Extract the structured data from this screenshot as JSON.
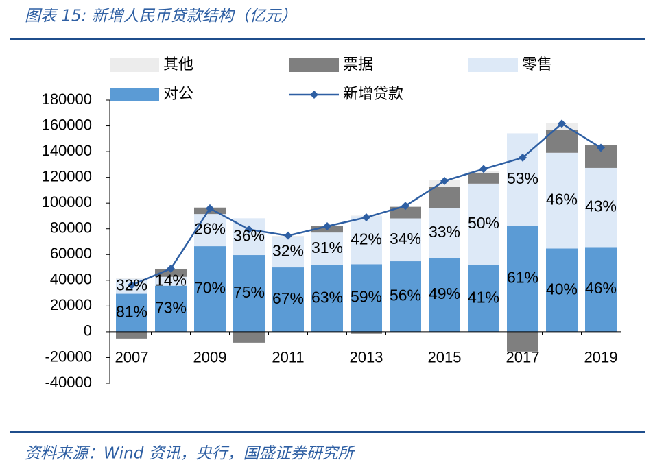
{
  "chart_data": {
    "type": "stacked-bar-line",
    "title": "图表 15:  新增人民币贷款结构（亿元）",
    "source": "资料来源：Wind 资讯，央行，国盛证券研究所",
    "categories": [
      "2007",
      null,
      "2009",
      null,
      "2011",
      null,
      "2013",
      null,
      "2015",
      null,
      "2017",
      null,
      "2019"
    ],
    "series": [
      {
        "name": "其他",
        "type": "bar",
        "color": "#ececec",
        "values": [
          500,
          300,
          0,
          0,
          500,
          0,
          500,
          0,
          5000,
          2000,
          0,
          5000,
          0
        ]
      },
      {
        "name": "票据",
        "type": "bar",
        "color": "#7f7f7f",
        "values": [
          -5300,
          6000,
          5000,
          -8500,
          0,
          5000,
          -1500,
          9000,
          16700,
          8000,
          -15400,
          18000,
          18000
        ]
      },
      {
        "name": "零售",
        "type": "bar",
        "color": "#dde9f7",
        "values": [
          11600,
          6900,
          25000,
          28600,
          24000,
          25400,
          37300,
          33300,
          38700,
          63200,
          71700,
          74400,
          61500
        ],
        "share_labels": [
          "32%",
          "14%",
          "26%",
          "36%",
          "32%",
          "31%",
          "42%",
          "34%",
          "33%",
          "50%",
          "53%",
          "46%",
          "43%"
        ]
      },
      {
        "name": "对公",
        "type": "bar",
        "color": "#5b9bd5",
        "values": [
          29500,
          35800,
          66500,
          59600,
          50000,
          51700,
          52500,
          54800,
          57400,
          51900,
          82500,
          64700,
          65800
        ],
        "share_labels": [
          "81%",
          "73%",
          "70%",
          "75%",
          "67%",
          "63%",
          "59%",
          "56%",
          "49%",
          "41%",
          "61%",
          "40%",
          "46%"
        ]
      },
      {
        "name": "新增贷款",
        "type": "line",
        "color": "#2e5fa3",
        "values": [
          36300,
          49000,
          95900,
          79500,
          74700,
          82000,
          88900,
          97800,
          117200,
          126500,
          135300,
          161700,
          143000
        ]
      }
    ],
    "ylim": [
      -40000,
      180000
    ],
    "yticks": [
      -40000,
      -20000,
      0,
      20000,
      40000,
      60000,
      80000,
      100000,
      120000,
      140000,
      160000,
      180000
    ]
  }
}
